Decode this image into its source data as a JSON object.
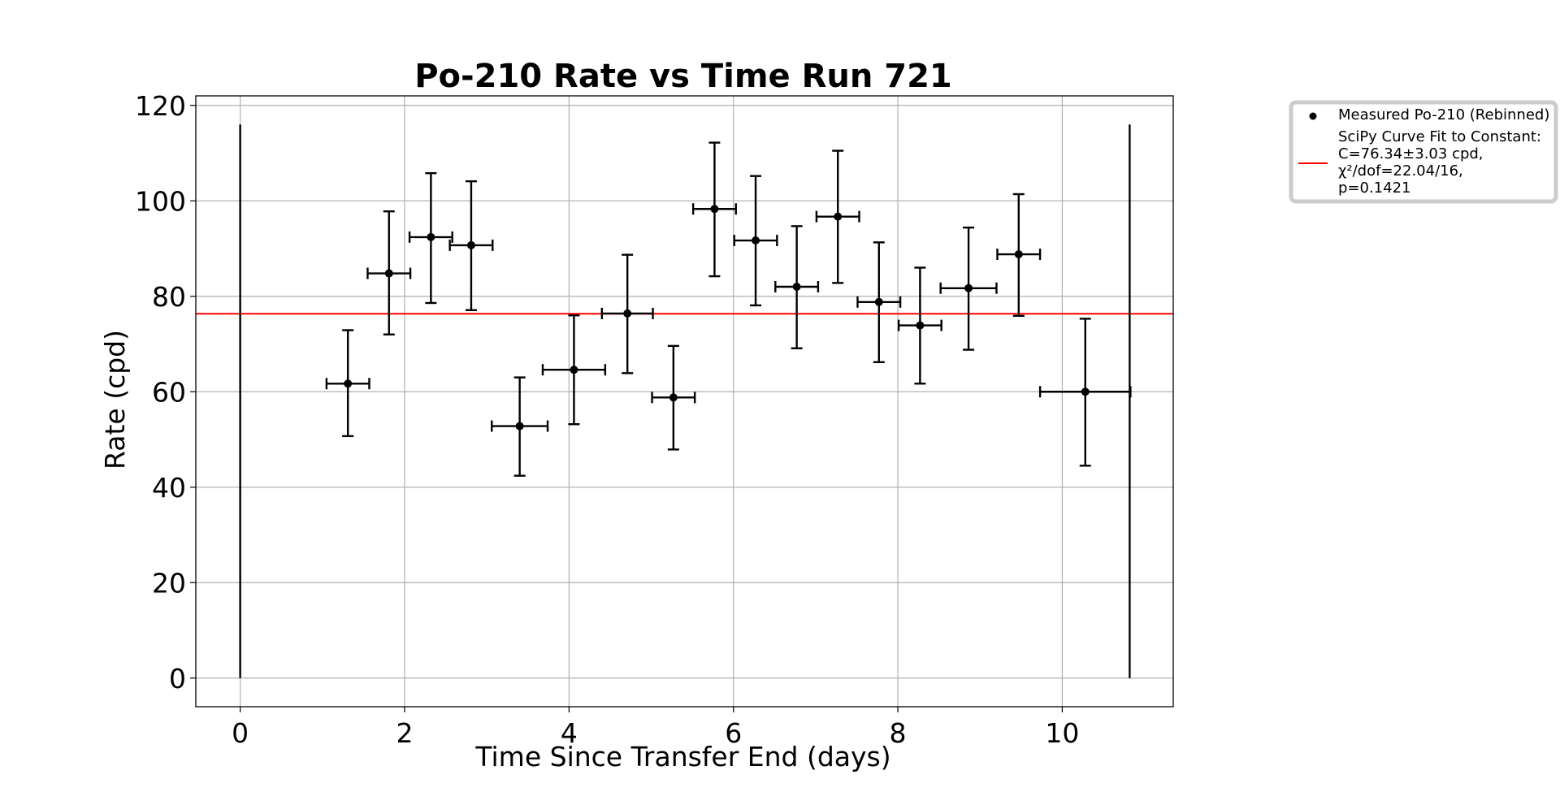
{
  "chart_data": {
    "type": "scatter",
    "title": "Po-210 Rate vs Time Run 721",
    "xlabel": "Time Since Transfer End (days)",
    "ylabel": "Rate (cpd)",
    "xlim": [
      -0.54,
      11.35
    ],
    "ylim": [
      -6,
      122
    ],
    "xticks": [
      0,
      2,
      4,
      6,
      8,
      10
    ],
    "yticks": [
      0,
      20,
      40,
      60,
      80,
      100,
      120
    ],
    "grid": true,
    "legend_position": "outside-top-right",
    "series": [
      {
        "name": "Measured Po-210 (Rebinned)",
        "kind": "errorbar",
        "color": "#000000",
        "points": [
          {
            "x": 0.0,
            "y": 0.0,
            "xerr": 0.0,
            "yerr": [
              0,
              116
            ]
          },
          {
            "x": 1.31,
            "y": 61.7,
            "xerr": 0.26,
            "yerr": [
              11.0,
              11.2
            ]
          },
          {
            "x": 1.81,
            "y": 84.8,
            "xerr": 0.26,
            "yerr": [
              12.8,
              13.0
            ]
          },
          {
            "x": 2.32,
            "y": 92.4,
            "xerr": 0.26,
            "yerr": [
              13.8,
              13.4
            ]
          },
          {
            "x": 2.81,
            "y": 90.7,
            "xerr": 0.26,
            "yerr": [
              13.6,
              13.4
            ]
          },
          {
            "x": 3.4,
            "y": 52.8,
            "xerr": 0.34,
            "yerr": [
              10.4,
              10.2
            ]
          },
          {
            "x": 4.06,
            "y": 64.6,
            "xerr": 0.38,
            "yerr": [
              11.4,
              11.4
            ]
          },
          {
            "x": 4.71,
            "y": 76.4,
            "xerr": 0.31,
            "yerr": [
              12.5,
              12.3
            ]
          },
          {
            "x": 5.27,
            "y": 58.8,
            "xerr": 0.26,
            "yerr": [
              10.9,
              10.8
            ]
          },
          {
            "x": 5.77,
            "y": 98.3,
            "xerr": 0.26,
            "yerr": [
              14.1,
              13.9
            ]
          },
          {
            "x": 6.27,
            "y": 91.7,
            "xerr": 0.26,
            "yerr": [
              13.6,
              13.5
            ]
          },
          {
            "x": 6.77,
            "y": 82.0,
            "xerr": 0.26,
            "yerr": [
              12.9,
              12.7
            ]
          },
          {
            "x": 7.27,
            "y": 96.7,
            "xerr": 0.26,
            "yerr": [
              13.9,
              13.8
            ]
          },
          {
            "x": 7.77,
            "y": 78.8,
            "xerr": 0.26,
            "yerr": [
              12.6,
              12.5
            ]
          },
          {
            "x": 8.27,
            "y": 73.9,
            "xerr": 0.26,
            "yerr": [
              12.2,
              12.1
            ]
          },
          {
            "x": 8.86,
            "y": 81.7,
            "xerr": 0.34,
            "yerr": [
              12.9,
              12.7
            ]
          },
          {
            "x": 9.47,
            "y": 88.8,
            "xerr": 0.26,
            "yerr": [
              12.9,
              12.6
            ]
          },
          {
            "x": 10.28,
            "y": 60.0,
            "xerr": 0.55,
            "yerr": [
              15.5,
              15.3
            ]
          },
          {
            "x": 10.82,
            "y": 0.0,
            "xerr": 0.0,
            "yerr": [
              0,
              116
            ]
          }
        ]
      },
      {
        "name": "SciPy Curve Fit to Constant:\nC=76.34±3.03 cpd,\nχ²/dof=22.04/16,\np=0.1421",
        "kind": "hline",
        "color": "#ff0000",
        "y": 76.34
      }
    ]
  },
  "legend": {
    "items": [
      {
        "lines": [
          "Measured Po-210 (Rebinned)"
        ]
      },
      {
        "lines": [
          "SciPy Curve Fit to Constant:",
          "C=76.34±3.03 cpd,",
          "χ²/dof=22.04/16,",
          "p=0.1421"
        ]
      }
    ]
  }
}
